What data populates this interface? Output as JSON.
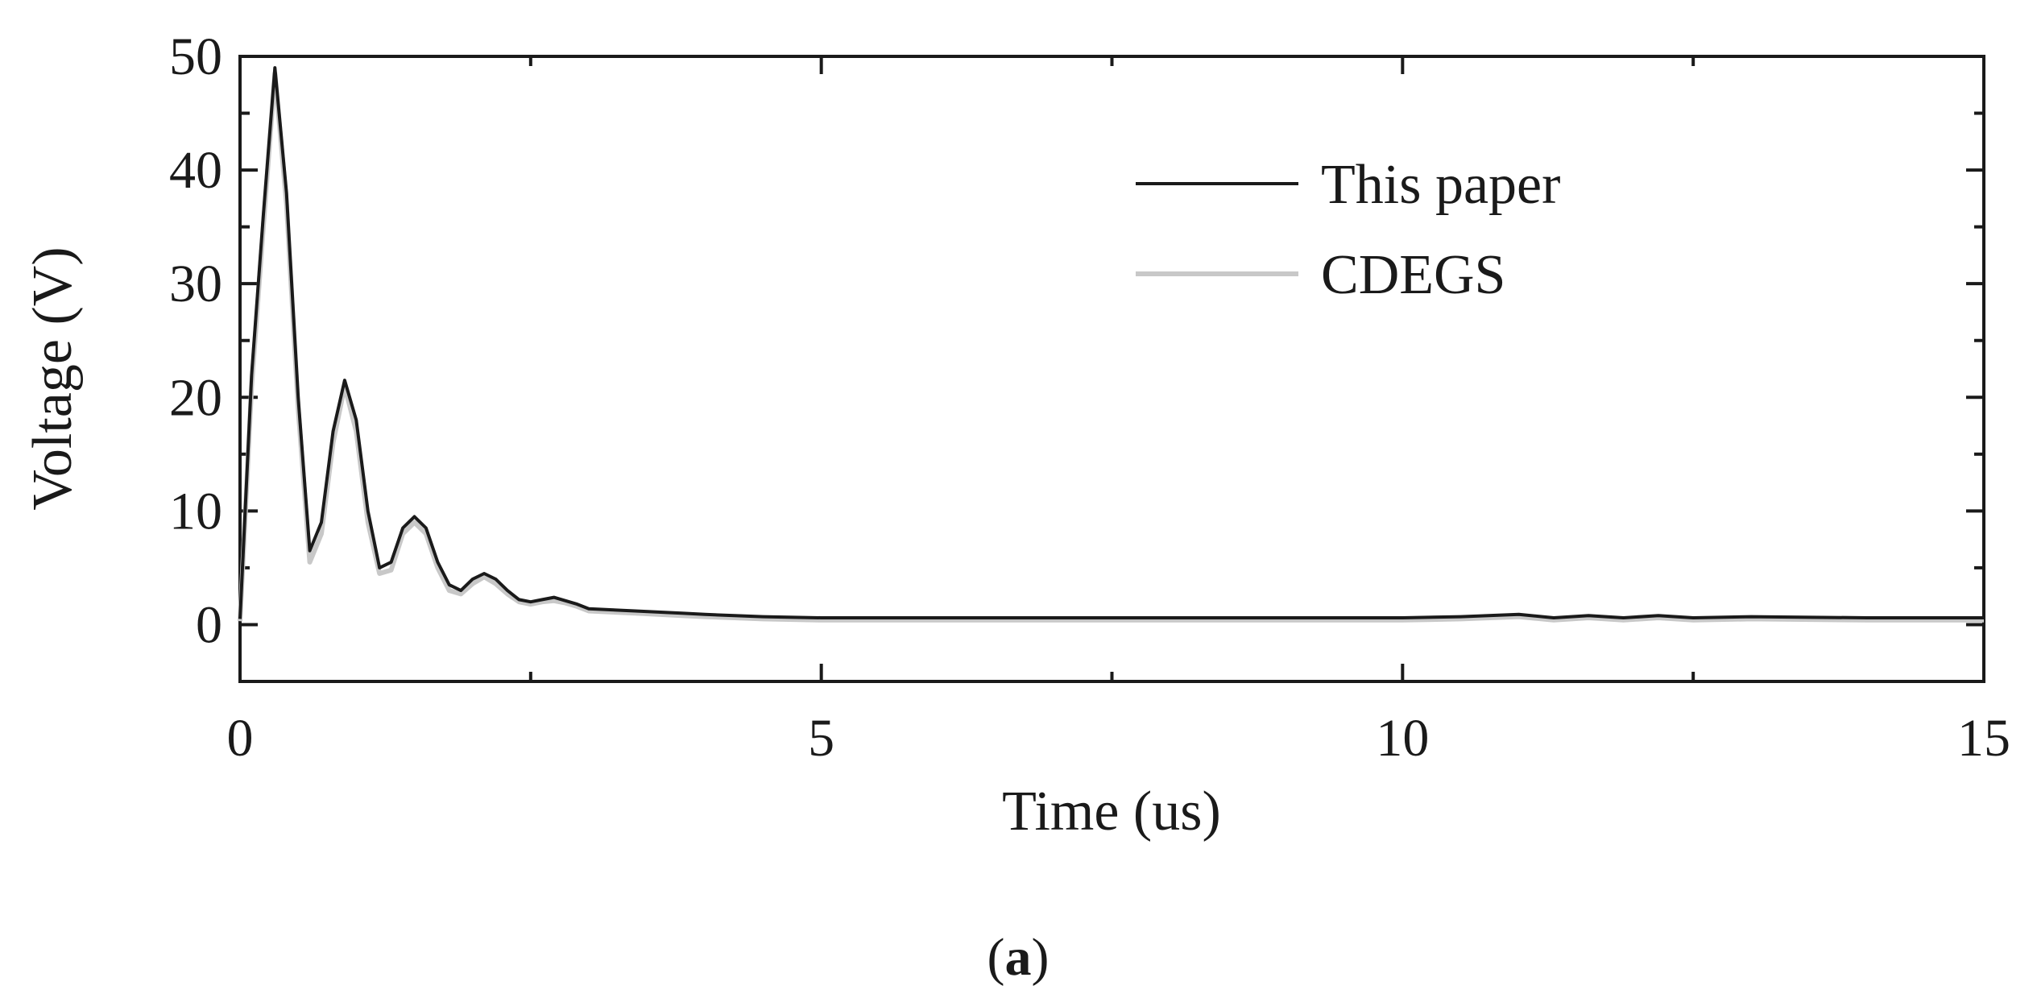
{
  "chart_data": {
    "type": "line",
    "xlabel": "Time (us)",
    "ylabel": "Voltage (V)",
    "xlim": [
      0,
      15
    ],
    "ylim": [
      -5,
      50
    ],
    "x_ticks": [
      0,
      5,
      10,
      15
    ],
    "y_ticks": [
      0,
      10,
      20,
      30,
      40,
      50
    ],
    "grid": false,
    "legend_position": "top-right",
    "series": [
      {
        "name": "This paper",
        "color": "#1a1a1a",
        "x": [
          0,
          0.1,
          0.2,
          0.3,
          0.4,
          0.5,
          0.6,
          0.7,
          0.8,
          0.9,
          1.0,
          1.1,
          1.2,
          1.3,
          1.4,
          1.5,
          1.6,
          1.7,
          1.8,
          1.9,
          2.0,
          2.1,
          2.2,
          2.3,
          2.4,
          2.5,
          2.6,
          2.7,
          2.8,
          2.9,
          3.0,
          3.2,
          3.4,
          3.6,
          3.8,
          4.0,
          4.5,
          5.0,
          6.0,
          7.0,
          8.0,
          9.0,
          10.0,
          10.5,
          11.0,
          11.3,
          11.6,
          11.9,
          12.2,
          12.5,
          13.0,
          14.0,
          15.0
        ],
        "y": [
          0.5,
          22,
          36,
          49,
          38,
          20,
          6.5,
          9,
          17,
          21.5,
          18,
          10,
          5,
          5.5,
          8.5,
          9.5,
          8.5,
          5.5,
          3.5,
          3,
          4,
          4.5,
          4,
          3,
          2.2,
          2,
          2.2,
          2.4,
          2.1,
          1.8,
          1.4,
          1.3,
          1.2,
          1.1,
          1.0,
          0.9,
          0.7,
          0.6,
          0.6,
          0.6,
          0.6,
          0.6,
          0.6,
          0.7,
          0.9,
          0.6,
          0.8,
          0.6,
          0.8,
          0.6,
          0.7,
          0.6,
          0.6
        ]
      },
      {
        "name": "CDEGS",
        "color": "#c8c8c8",
        "x": [
          0,
          0.1,
          0.2,
          0.3,
          0.4,
          0.5,
          0.6,
          0.7,
          0.8,
          0.9,
          1.0,
          1.1,
          1.2,
          1.3,
          1.4,
          1.5,
          1.6,
          1.7,
          1.8,
          1.9,
          2.0,
          2.1,
          2.2,
          2.3,
          2.4,
          2.5,
          2.6,
          2.7,
          2.8,
          2.9,
          3.0,
          3.2,
          3.4,
          3.6,
          3.8,
          4.0,
          4.5,
          5.0,
          6.0,
          7.0,
          8.0,
          9.0,
          10.0,
          10.5,
          11.0,
          11.3,
          11.6,
          11.9,
          12.2,
          12.5,
          13.0,
          14.0,
          15.0
        ],
        "y": [
          0.3,
          21,
          35,
          48.5,
          37,
          19,
          5.5,
          8,
          16,
          21,
          17,
          9,
          4.5,
          4.8,
          8,
          9,
          8,
          5,
          3,
          2.7,
          3.6,
          4.2,
          3.6,
          2.7,
          2,
          1.8,
          2,
          2.1,
          1.9,
          1.6,
          1.2,
          1.1,
          1.0,
          0.9,
          0.8,
          0.7,
          0.5,
          0.4,
          0.4,
          0.4,
          0.4,
          0.4,
          0.4,
          0.5,
          0.7,
          0.4,
          0.6,
          0.4,
          0.6,
          0.4,
          0.5,
          0.4,
          0.4
        ]
      }
    ]
  },
  "caption": {
    "open": "(",
    "letter": "a",
    "close": ")"
  }
}
